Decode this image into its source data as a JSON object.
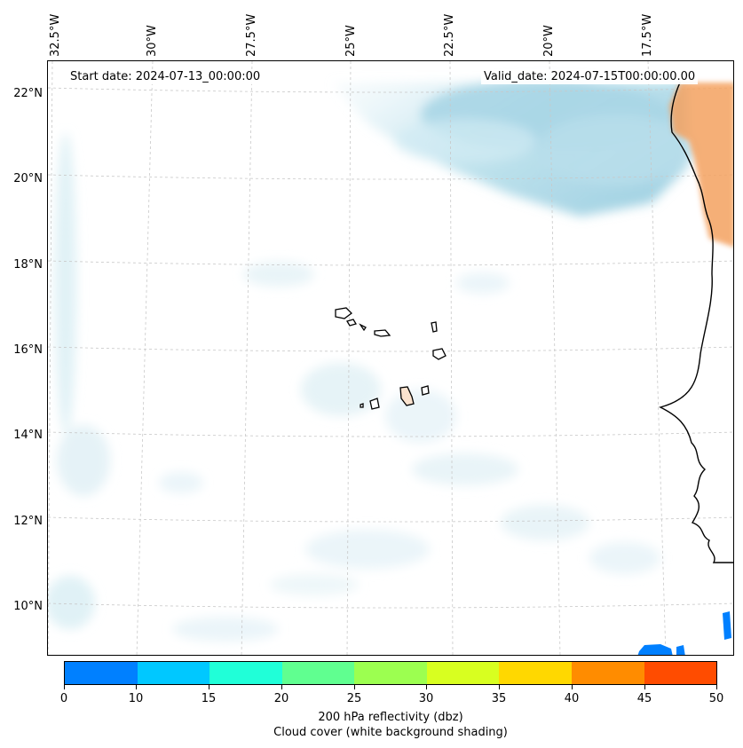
{
  "header": {
    "start_date": "Start date: 2024-07-13_00:00:00",
    "valid_date": "Valid_date: 2024-07-15T00:00:00.00"
  },
  "map": {
    "lat_labels": [
      "22°N",
      "20°N",
      "18°N",
      "16°N",
      "14°N",
      "12°N",
      "10°N"
    ],
    "lon_labels": [
      "32.5°W",
      "30°W",
      "27.5°W",
      "25°W",
      "22.5°W",
      "20°W",
      "17.5°W"
    ],
    "cloud_color": "#a9d6e5",
    "land_reflectivity_color": "#f4a261",
    "reflectivity_blue": "#0080ff"
  },
  "colorbar": {
    "ticks": [
      "0",
      "10",
      "15",
      "20",
      "25",
      "30",
      "35",
      "40",
      "45",
      "50"
    ],
    "colors": [
      "#0080ff",
      "#00c8ff",
      "#20ffd8",
      "#60ff90",
      "#9cff50",
      "#d8ff20",
      "#ffd800",
      "#ff8c00",
      "#ff4c00"
    ],
    "label_line1": "200 hPa reflectivity (dbz)",
    "label_line2": "Cloud cover (white background shading)"
  }
}
